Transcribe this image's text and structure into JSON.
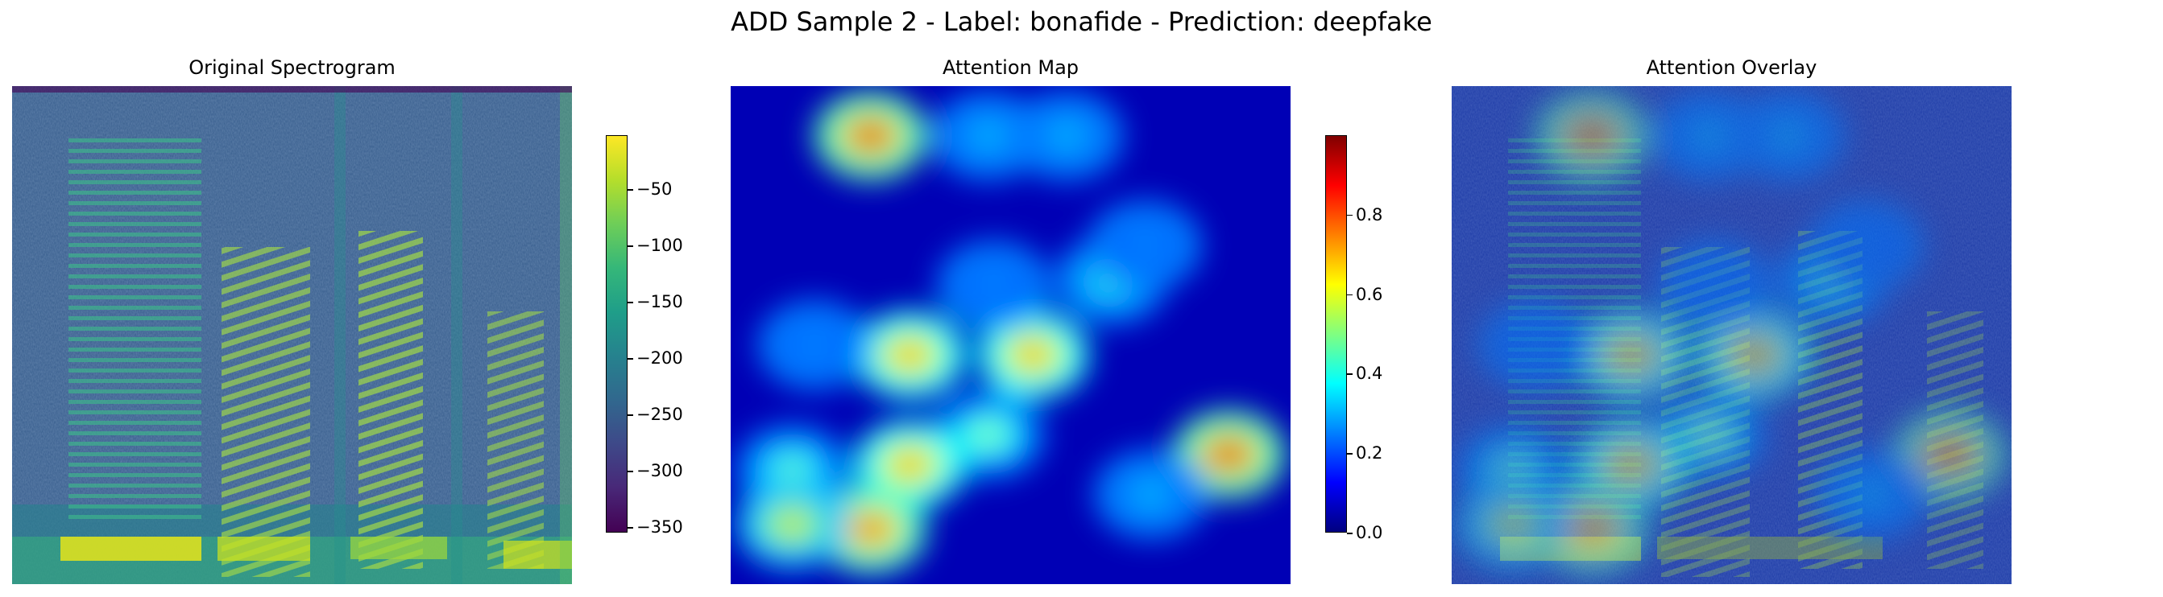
{
  "suptitle": "ADD Sample 2 - Label: bonafide - Prediction: deepfake",
  "chart_data": [
    {
      "type": "heatmap",
      "title": "Original Spectrogram",
      "colormap": "viridis",
      "colorbar": {
        "min": -355,
        "max": -2,
        "ticks": [
          -50,
          -100,
          -150,
          -200,
          -250,
          -300,
          -350
        ],
        "tick_labels": [
          "−50",
          "−100",
          "−150",
          "−200",
          "−250",
          "−300",
          "−350"
        ]
      },
      "axes_visible": false
    },
    {
      "type": "heatmap",
      "title": "Attention Map",
      "colormap": "jet",
      "colorbar": {
        "min": 0.0,
        "max": 1.0,
        "ticks": [
          0.8,
          0.6,
          0.4,
          0.2,
          0.0
        ],
        "tick_labels": [
          "0.8",
          "0.6",
          "0.4",
          "0.2",
          "0.0"
        ]
      },
      "hotspots": [
        {
          "x": 0.25,
          "y": 0.1,
          "value": 1.0
        },
        {
          "x": 0.46,
          "y": 0.1,
          "value": 0.35
        },
        {
          "x": 0.6,
          "y": 0.1,
          "value": 0.35
        },
        {
          "x": 0.32,
          "y": 0.54,
          "value": 0.85
        },
        {
          "x": 0.54,
          "y": 0.54,
          "value": 0.85
        },
        {
          "x": 0.68,
          "y": 0.39,
          "value": 0.45
        },
        {
          "x": 0.74,
          "y": 0.32,
          "value": 0.3
        },
        {
          "x": 0.47,
          "y": 0.4,
          "value": 0.3
        },
        {
          "x": 0.46,
          "y": 0.7,
          "value": 0.55
        },
        {
          "x": 0.32,
          "y": 0.76,
          "value": 0.85
        },
        {
          "x": 0.11,
          "y": 0.77,
          "value": 0.5
        },
        {
          "x": 0.25,
          "y": 0.89,
          "value": 0.95
        },
        {
          "x": 0.11,
          "y": 0.88,
          "value": 0.7
        },
        {
          "x": 0.89,
          "y": 0.74,
          "value": 1.0
        },
        {
          "x": 0.75,
          "y": 0.82,
          "value": 0.35
        },
        {
          "x": 0.15,
          "y": 0.52,
          "value": 0.3
        }
      ],
      "axes_visible": false
    },
    {
      "type": "heatmap",
      "title": "Attention Overlay",
      "description_kind": "spectrogram with attention map overlaid (alpha blend)",
      "axes_visible": false
    }
  ]
}
